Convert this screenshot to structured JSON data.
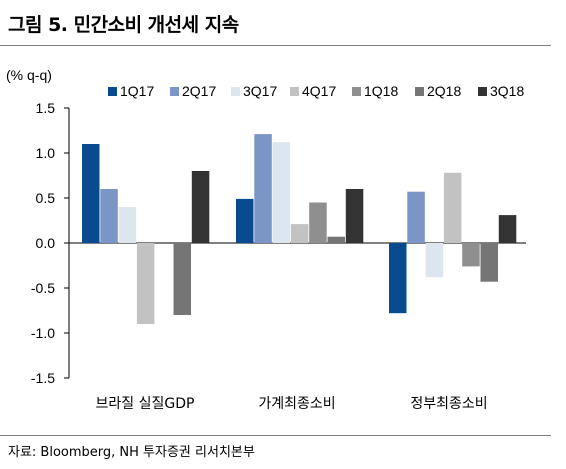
{
  "figure_title": "그림 5. 민간소비 개선세 지속",
  "source": "자료: Bloomberg, NH 투자증권 리서치본부",
  "chart_data": {
    "type": "bar",
    "ylabel": "(% q-q)",
    "ylim": [
      -1.5,
      1.5
    ],
    "yticks": [
      1.5,
      1.0,
      0.5,
      0.0,
      -0.5,
      -1.0,
      -1.5
    ],
    "ytick_labels": [
      "1.5",
      "1.0",
      "0.5",
      "0.0",
      "-0.5",
      "-1.0",
      "-1.5"
    ],
    "grid": false,
    "legend_position": "top",
    "categories": [
      "브라질 실질GDP",
      "가계최종소비",
      "정부최종소비"
    ],
    "series": [
      {
        "name": "1Q17",
        "color": "#0a4a8f",
        "values": [
          1.1,
          0.49,
          -0.78
        ]
      },
      {
        "name": "2Q17",
        "color": "#7b95c6",
        "values": [
          0.6,
          1.21,
          0.57
        ]
      },
      {
        "name": "3Q17",
        "color": "#dde6ef",
        "values": [
          0.4,
          1.12,
          -0.38
        ]
      },
      {
        "name": "4Q17",
        "color": "#c2c2c2",
        "values": [
          -0.9,
          0.21,
          0.78
        ]
      },
      {
        "name": "1Q18",
        "color": "#8f8f8f",
        "values": [
          0.0,
          0.45,
          -0.26
        ]
      },
      {
        "name": "2Q18",
        "color": "#757575",
        "values": [
          -0.8,
          0.07,
          -0.43
        ]
      },
      {
        "name": "3Q18",
        "color": "#333333",
        "values": [
          0.8,
          0.6,
          0.31
        ]
      }
    ]
  }
}
